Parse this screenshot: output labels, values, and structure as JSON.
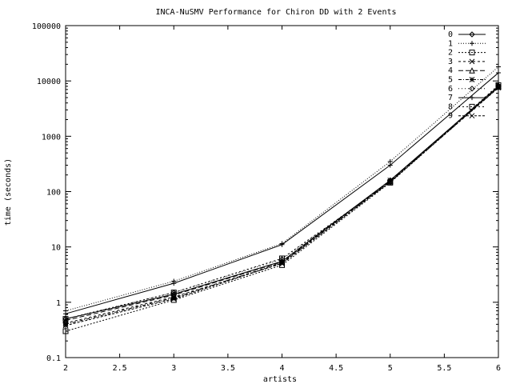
{
  "chart_data": {
    "type": "line",
    "title": "INCA-NuSMV Performance for Chiron DD with 2 Events",
    "xlabel": "artists",
    "ylabel": "time (seconds)",
    "xlim": [
      2,
      6
    ],
    "ylim": [
      0.1,
      100000
    ],
    "yscale": "log",
    "grid": false,
    "legend_position": "top-right",
    "x_ticks": [
      2,
      2.5,
      3,
      3.5,
      4,
      4.5,
      5,
      5.5,
      6
    ],
    "x_tick_labels": [
      "2",
      "2.5",
      "3",
      "3.5",
      "4",
      "4.5",
      "5",
      "5.5",
      "6"
    ],
    "y_ticks": [
      0.1,
      1,
      10,
      100,
      1000,
      10000,
      100000
    ],
    "y_tick_labels": [
      "0.1",
      "1",
      "10",
      "100",
      "1000",
      "10000",
      "100000"
    ],
    "x": [
      2,
      3,
      4,
      5,
      6
    ],
    "series": [
      {
        "name": "0",
        "marker": "diamond",
        "dash": "",
        "values": [
          0.5,
          1.4,
          5.5,
          160,
          8000
        ]
      },
      {
        "name": "1",
        "marker": "plus",
        "dash": "1,2",
        "values": [
          0.7,
          2.4,
          11.5,
          350,
          18000
        ]
      },
      {
        "name": "2",
        "marker": "square",
        "dash": "2,2",
        "values": [
          0.3,
          1.1,
          4.7,
          145,
          7800
        ]
      },
      {
        "name": "3",
        "marker": "x",
        "dash": "3,3",
        "values": [
          0.42,
          1.25,
          5.0,
          150,
          7600
        ]
      },
      {
        "name": "4",
        "marker": "triangle",
        "dash": "6,3",
        "values": [
          0.47,
          1.35,
          5.4,
          155,
          8000
        ]
      },
      {
        "name": "5",
        "marker": "star",
        "dash": "4,2,1,2",
        "values": [
          0.4,
          1.2,
          5.2,
          160,
          7700
        ]
      },
      {
        "name": "6",
        "marker": "diamond",
        "dash": "1,3",
        "values": [
          0.5,
          1.5,
          6.0,
          150,
          8200
        ]
      },
      {
        "name": "7",
        "marker": "plus",
        "dash": "",
        "values": [
          0.62,
          2.2,
          11.0,
          300,
          14000
        ]
      },
      {
        "name": "8",
        "marker": "square",
        "dash": "2,3",
        "values": [
          0.5,
          1.5,
          6.2,
          148,
          8400
        ]
      },
      {
        "name": "9",
        "marker": "x",
        "dash": "3,2",
        "values": [
          0.38,
          1.15,
          5.1,
          150,
          7500
        ]
      }
    ]
  }
}
